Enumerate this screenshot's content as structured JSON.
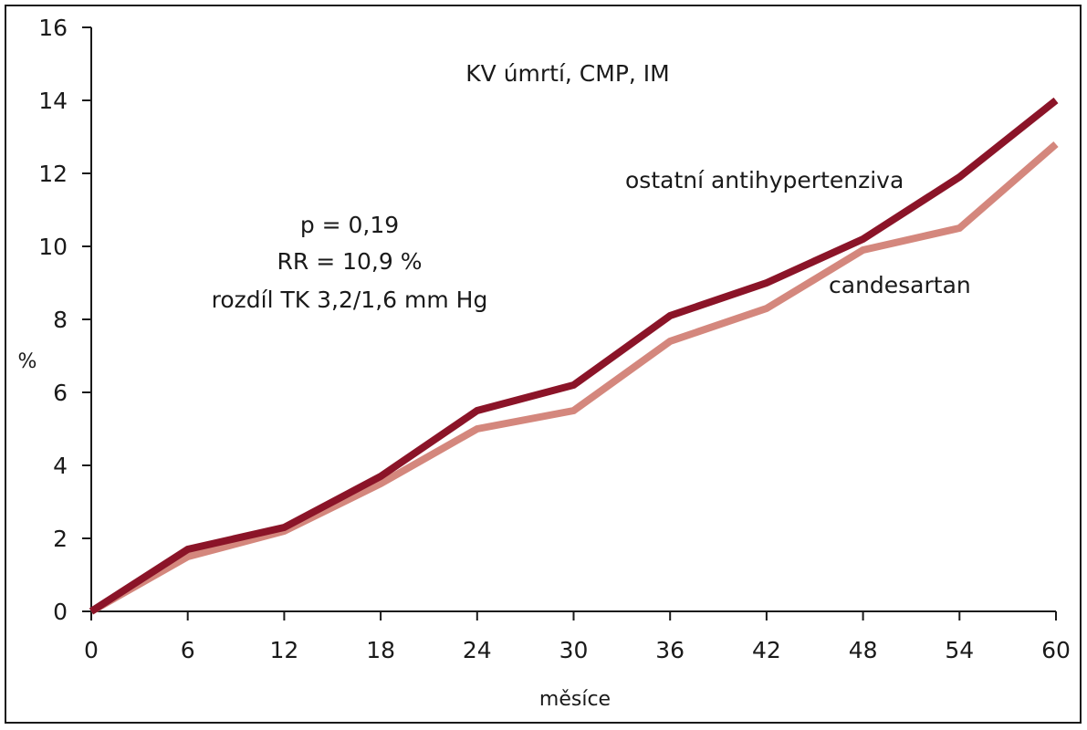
{
  "chart_data": {
    "type": "line",
    "title": "KV úmrtí, CMP, IM",
    "xlabel": "měsíce",
    "ylabel": "%",
    "x": [
      0,
      6,
      12,
      18,
      24,
      30,
      36,
      42,
      48,
      54,
      60
    ],
    "xticks": [
      "0",
      "6",
      "12",
      "18",
      "24",
      "30",
      "36",
      "42",
      "48",
      "54",
      "60"
    ],
    "yticks": [
      "0",
      "2",
      "4",
      "6",
      "8",
      "10",
      "12",
      "14",
      "16"
    ],
    "xlim": [
      0,
      60
    ],
    "ylim": [
      0,
      16
    ],
    "grid": false,
    "series": [
      {
        "name": "ostatní antihypertenziva",
        "color": "#8b1428",
        "values": [
          0,
          1.7,
          2.3,
          3.7,
          5.5,
          6.2,
          8.1,
          9.0,
          10.2,
          11.9,
          14.0
        ]
      },
      {
        "name": "candesartan",
        "color": "#d4877d",
        "values": [
          0,
          1.5,
          2.2,
          3.5,
          5.0,
          5.5,
          7.4,
          8.3,
          9.9,
          10.5,
          12.8
        ]
      }
    ],
    "annotations": [
      "p = 0,19",
      "RR = 10,9 %",
      "rozdíl TK 3,2/1,6 mm Hg"
    ]
  }
}
